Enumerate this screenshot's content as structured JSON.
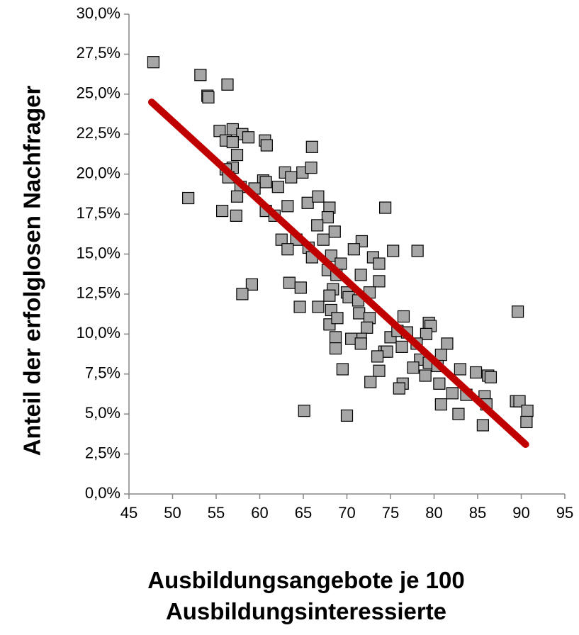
{
  "chart_data": {
    "type": "scatter",
    "x_label": "Ausbildungsangebote je 100 Ausbildungsinteressierte",
    "x_label_lines": [
      "Ausbildungsangebote je 100",
      "Ausbildungsinteressierte"
    ],
    "y_label": "Anteil der erfolglosen Nachfrager",
    "xlim": [
      45,
      95
    ],
    "xticks": [
      45,
      50,
      55,
      60,
      65,
      70,
      75,
      80,
      85,
      90,
      95
    ],
    "ylim": [
      0,
      30
    ],
    "yticks": [
      {
        "value": 0,
        "label": "0,0%"
      },
      {
        "value": 2.5,
        "label": "2,5%"
      },
      {
        "value": 5,
        "label": "5,0%"
      },
      {
        "value": 7.5,
        "label": "7,5%"
      },
      {
        "value": 10,
        "label": "10,0%"
      },
      {
        "value": 12.5,
        "label": "12,5%"
      },
      {
        "value": 15,
        "label": "15,0%"
      },
      {
        "value": 17.5,
        "label": "17,5%"
      },
      {
        "value": 20,
        "label": "20,0%"
      },
      {
        "value": 22.5,
        "label": "22,5%"
      },
      {
        "value": 25,
        "label": "25,0%"
      },
      {
        "value": 27.5,
        "label": "27,5%"
      },
      {
        "value": 30,
        "label": "30,0%"
      }
    ],
    "series": [
      {
        "color": "#a6a6a6",
        "x": [
          47.8,
          53.2,
          54.0,
          54.1,
          56.3,
          55.4,
          56.9,
          58.0,
          58.7,
          56.1,
          56.9,
          60.6,
          60.8,
          57.4,
          66.0,
          56.9,
          56.1,
          56.4,
          60.4,
          60.7,
          62.9,
          64.9,
          65.9,
          63.6,
          62.1,
          57.8,
          59.4,
          51.8,
          55.7,
          57.4,
          57.3,
          60.7,
          61.7,
          63.2,
          65.5,
          66.7,
          68.0,
          67.8,
          74.4,
          66.6,
          68.6,
          67.3,
          62.5,
          64.2,
          63.2,
          65.6,
          66.0,
          71.7,
          75.3,
          78.1,
          70.8,
          68.2,
          73.0,
          69.3,
          73.7,
          67.8,
          68.8,
          71.6,
          73.7,
          63.4,
          64.7,
          59.1,
          58.0,
          68.4,
          70.0,
          72.6,
          68.0,
          70.2,
          71.3,
          64.6,
          66.7,
          68.2,
          71.4,
          72.6,
          76.5,
          89.6,
          68.0,
          68.9,
          72.3,
          71.6,
          68.7,
          70.5,
          75.0,
          75.8,
          76.9,
          79.4,
          79.6,
          79.1,
          68.7,
          71.6,
          76.3,
          78.0,
          81.5,
          74.3,
          74.6,
          80.8,
          73.5,
          78.4,
          79.4,
          80.4,
          69.5,
          73.7,
          77.6,
          79.0,
          83.0,
          84.8,
          86.2,
          86.5,
          72.7,
          76.4,
          76.0,
          80.6,
          82.1,
          83.7,
          85.8,
          80.8,
          86.0,
          89.4,
          89.8,
          82.8,
          90.7,
          90.6,
          85.6,
          65.1,
          70.0
        ],
        "values": [
          27.0,
          26.2,
          24.9,
          24.8,
          25.6,
          22.7,
          22.8,
          22.5,
          22.3,
          22.1,
          22.0,
          22.1,
          21.8,
          21.2,
          21.7,
          20.4,
          20.3,
          19.8,
          19.6,
          19.5,
          20.1,
          20.1,
          20.4,
          19.8,
          19.2,
          19.2,
          19.1,
          18.5,
          17.7,
          18.6,
          17.4,
          17.7,
          17.4,
          18.0,
          18.2,
          18.6,
          17.9,
          17.3,
          17.9,
          16.8,
          16.4,
          15.9,
          15.9,
          15.9,
          15.3,
          15.4,
          14.8,
          15.8,
          15.2,
          15.2,
          15.3,
          14.9,
          14.8,
          14.4,
          14.4,
          14.0,
          13.7,
          13.7,
          13.3,
          13.2,
          12.9,
          13.1,
          12.5,
          12.8,
          12.6,
          12.6,
          12.4,
          12.3,
          12.1,
          11.7,
          11.7,
          11.5,
          11.3,
          11.0,
          11.1,
          11.4,
          10.6,
          11.0,
          10.4,
          9.7,
          9.8,
          9.7,
          9.8,
          10.2,
          10.1,
          10.7,
          10.5,
          10.0,
          9.1,
          9.4,
          9.2,
          9.4,
          9.4,
          8.9,
          8.9,
          8.7,
          8.6,
          8.4,
          8.2,
          8.0,
          7.8,
          7.7,
          7.9,
          7.4,
          7.8,
          7.6,
          7.4,
          7.3,
          7.0,
          6.9,
          6.6,
          6.9,
          6.3,
          6.2,
          6.1,
          5.6,
          5.6,
          5.8,
          5.8,
          5.0,
          5.2,
          4.5,
          4.3,
          5.2,
          4.9
        ]
      }
    ],
    "trendline": {
      "color": "#c00000",
      "x": [
        47.6,
        90.5
      ],
      "values": [
        24.5,
        3.1
      ]
    }
  }
}
